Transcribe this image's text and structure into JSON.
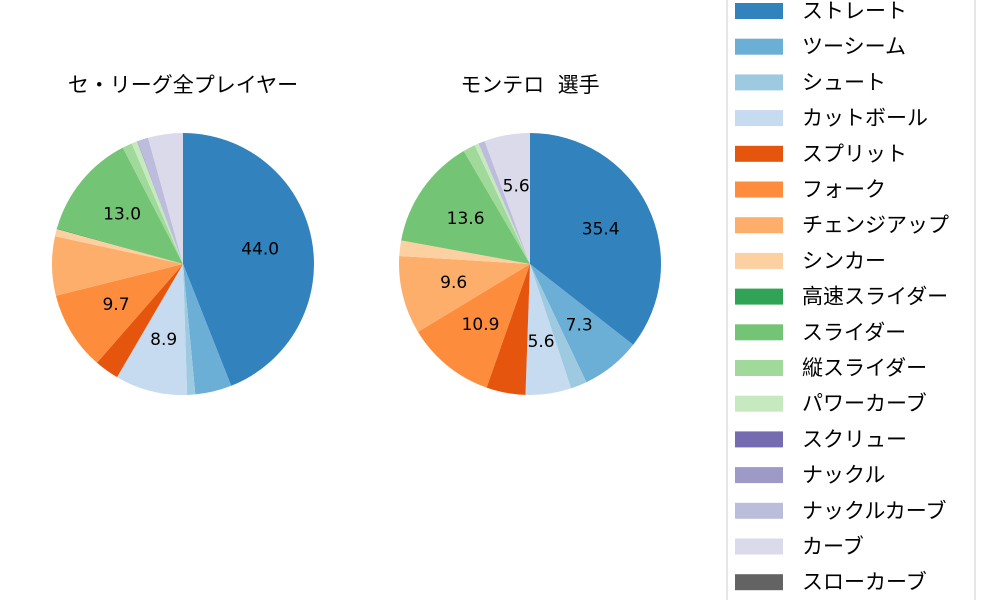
{
  "chart_data": [
    {
      "type": "pie",
      "title": "セ・リーグ全プレイヤー",
      "series": [
        {
          "name": "ストレート",
          "value": 44.0,
          "label": "44.0"
        },
        {
          "name": "ツーシーム",
          "value": 4.5,
          "label": ""
        },
        {
          "name": "シュート",
          "value": 1.0,
          "label": ""
        },
        {
          "name": "カットボール",
          "value": 8.9,
          "label": "8.9"
        },
        {
          "name": "スプリット",
          "value": 3.0,
          "label": ""
        },
        {
          "name": "フォーク",
          "value": 9.7,
          "label": "9.7"
        },
        {
          "name": "チェンジアップ",
          "value": 7.3,
          "label": ""
        },
        {
          "name": "シンカー",
          "value": 0.9,
          "label": ""
        },
        {
          "name": "高速スライダー",
          "value": 0.1,
          "label": ""
        },
        {
          "name": "スライダー",
          "value": 13.0,
          "label": "13.0"
        },
        {
          "name": "縦スライダー",
          "value": 1.2,
          "label": ""
        },
        {
          "name": "パワーカーブ",
          "value": 0.7,
          "label": ""
        },
        {
          "name": "スクリュー",
          "value": 0.0,
          "label": ""
        },
        {
          "name": "ナックル",
          "value": 0.1,
          "label": ""
        },
        {
          "name": "ナックルカーブ",
          "value": 1.3,
          "label": ""
        },
        {
          "name": "カーブ",
          "value": 4.3,
          "label": ""
        },
        {
          "name": "スローカーブ",
          "value": 0.0,
          "label": ""
        }
      ]
    },
    {
      "type": "pie",
      "title": "モンテロ  選手",
      "series": [
        {
          "name": "ストレート",
          "value": 35.4,
          "label": "35.4"
        },
        {
          "name": "ツーシーム",
          "value": 7.3,
          "label": "7.3"
        },
        {
          "name": "シュート",
          "value": 2.0,
          "label": ""
        },
        {
          "name": "カットボール",
          "value": 5.6,
          "label": "5.6"
        },
        {
          "name": "スプリット",
          "value": 4.8,
          "label": ""
        },
        {
          "name": "フォーク",
          "value": 10.9,
          "label": "10.9"
        },
        {
          "name": "チェンジアップ",
          "value": 9.6,
          "label": "9.6"
        },
        {
          "name": "シンカー",
          "value": 1.9,
          "label": ""
        },
        {
          "name": "高速スライダー",
          "value": 0.0,
          "label": ""
        },
        {
          "name": "スライダー",
          "value": 13.6,
          "label": "13.6"
        },
        {
          "name": "縦スライダー",
          "value": 1.5,
          "label": ""
        },
        {
          "name": "パワーカーブ",
          "value": 0.5,
          "label": ""
        },
        {
          "name": "スクリュー",
          "value": 0.0,
          "label": ""
        },
        {
          "name": "ナックル",
          "value": 0.0,
          "label": ""
        },
        {
          "name": "ナックルカーブ",
          "value": 0.8,
          "label": ""
        },
        {
          "name": "カーブ",
          "value": 5.6,
          "label": "5.6"
        },
        {
          "name": "スローカーブ",
          "value": 0.0,
          "label": ""
        }
      ]
    }
  ],
  "legend": {
    "placement": "right",
    "items": [
      {
        "name": "ストレート",
        "color": "#3182bd"
      },
      {
        "name": "ツーシーム",
        "color": "#6baed6"
      },
      {
        "name": "シュート",
        "color": "#9ecae1"
      },
      {
        "name": "カットボール",
        "color": "#c6dbef"
      },
      {
        "name": "スプリット",
        "color": "#e6550d"
      },
      {
        "name": "フォーク",
        "color": "#fd8d3c"
      },
      {
        "name": "チェンジアップ",
        "color": "#fdae6b"
      },
      {
        "name": "シンカー",
        "color": "#fdd0a2"
      },
      {
        "name": "高速スライダー",
        "color": "#31a354"
      },
      {
        "name": "スライダー",
        "color": "#74c476"
      },
      {
        "name": "縦スライダー",
        "color": "#a1d99b"
      },
      {
        "name": "パワーカーブ",
        "color": "#c7e9c0"
      },
      {
        "name": "スクリュー",
        "color": "#756bb1"
      },
      {
        "name": "ナックル",
        "color": "#9e9ac8"
      },
      {
        "name": "ナックルカーブ",
        "color": "#bcbddc"
      },
      {
        "name": "カーブ",
        "color": "#dadaeb"
      },
      {
        "name": "スローカーブ",
        "color": "#636363"
      }
    ]
  }
}
